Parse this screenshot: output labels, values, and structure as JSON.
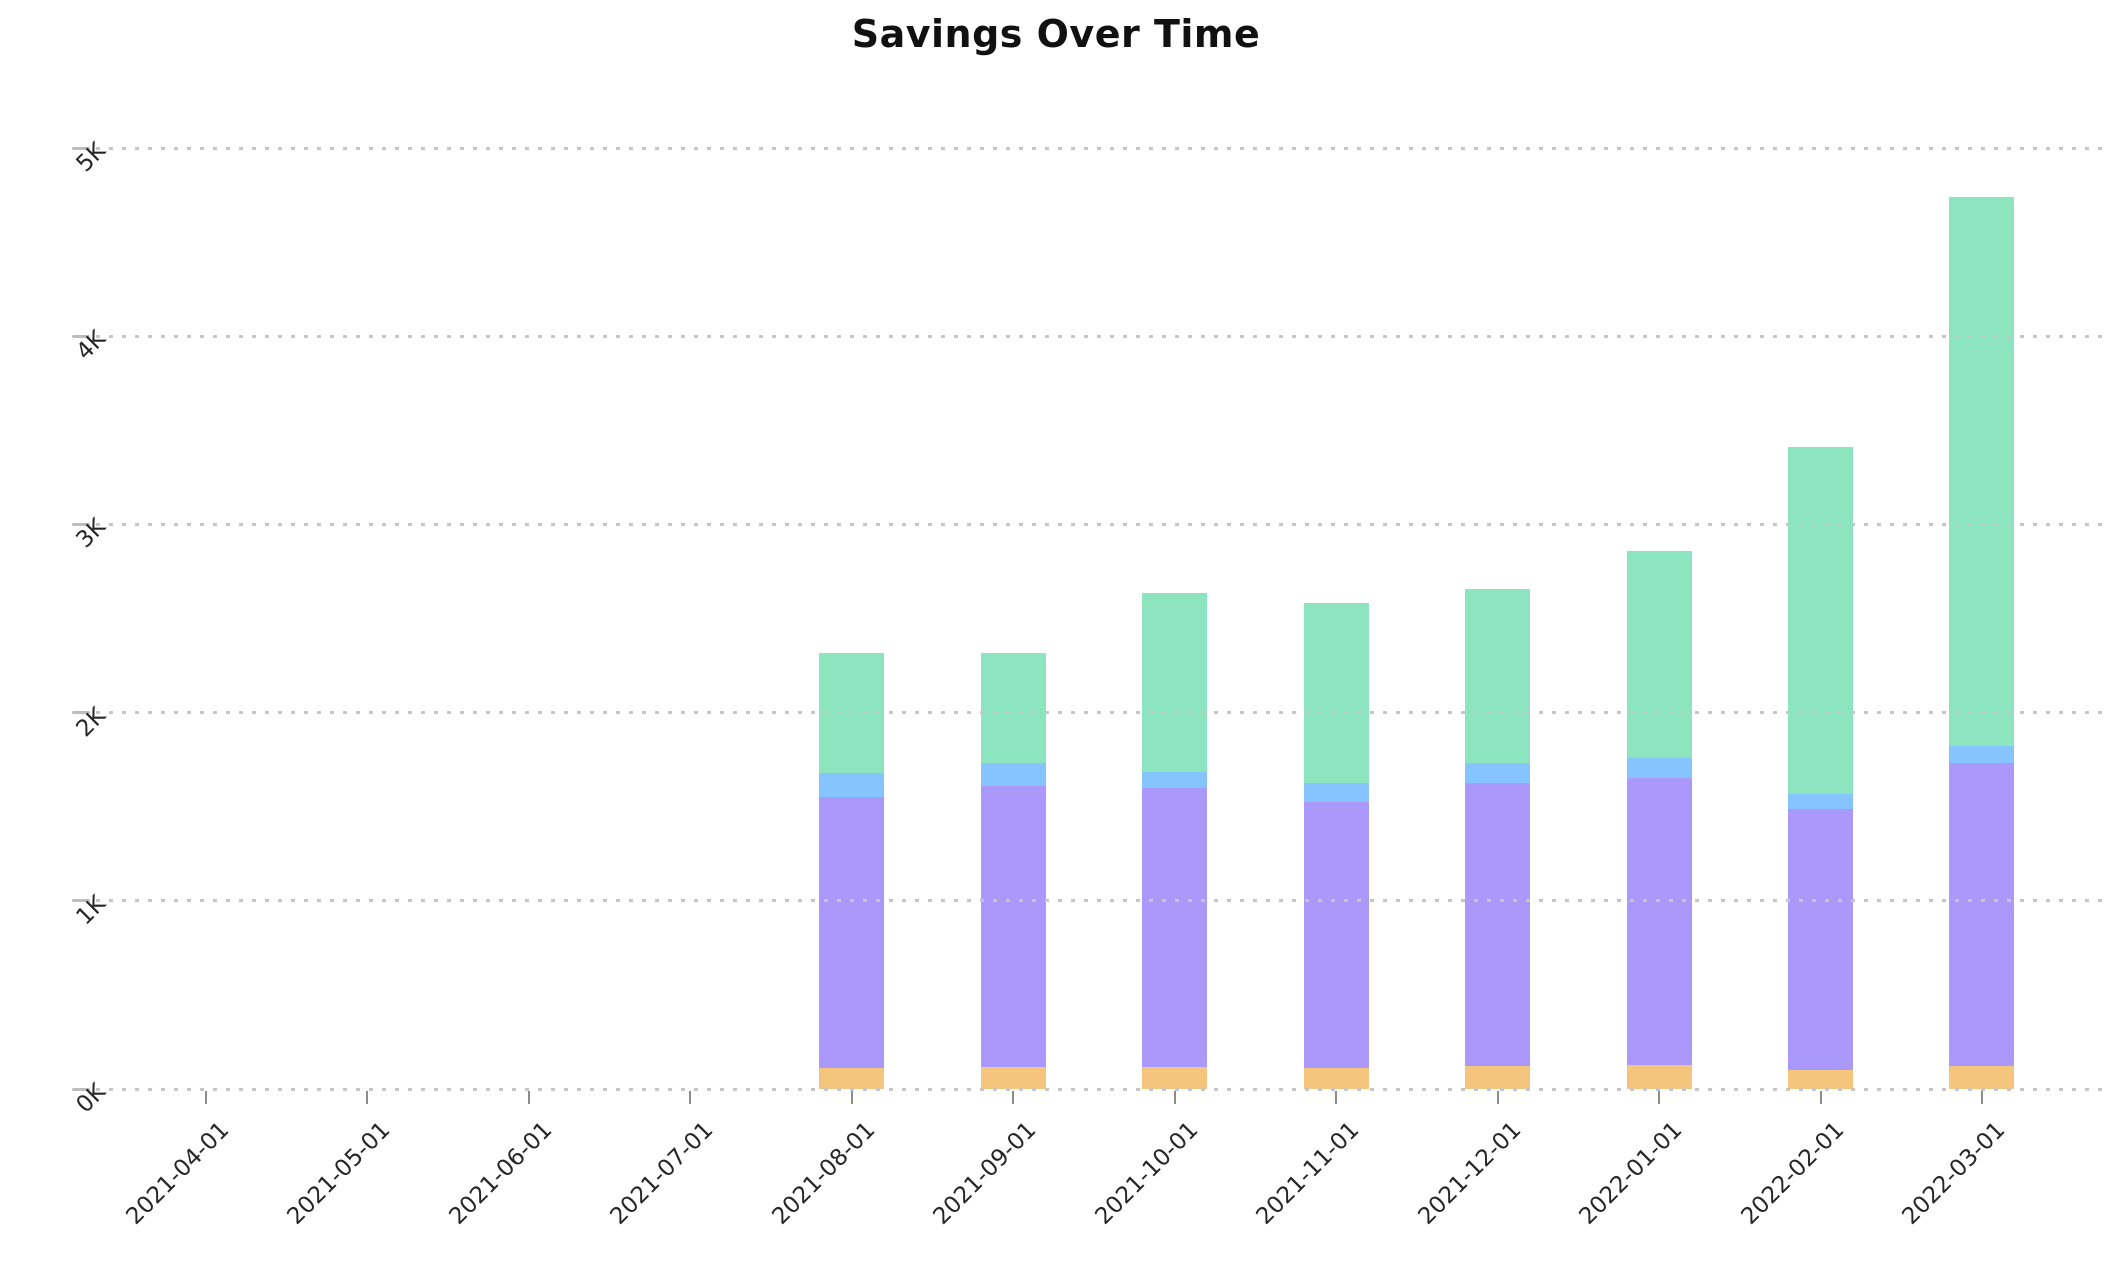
{
  "title": "Savings Over Time",
  "chart_data": {
    "type": "bar",
    "stacked": true,
    "title": "Savings Over Time",
    "xlabel": "",
    "ylabel": "",
    "x_tick_labels": [
      "2021-04-01",
      "2021-05-01",
      "2021-06-01",
      "2021-07-01",
      "2021-08-01",
      "2021-09-01",
      "2021-10-01",
      "2021-11-01",
      "2021-12-01",
      "2022-01-01",
      "2022-02-01",
      "2022-03-01"
    ],
    "y_tick_labels": [
      "0K",
      "1K",
      "2K",
      "3K",
      "4K",
      "5K"
    ],
    "ylim": [
      0,
      5000
    ],
    "y_tick_interval": 1000,
    "grid": "horizontal-dotted",
    "gridlines_over_bars": true,
    "legend": "none",
    "series": [
      {
        "name": "orange",
        "color": "#f6c57d",
        "values": [
          0,
          0,
          0,
          0,
          110,
          115,
          115,
          110,
          120,
          125,
          100,
          120
        ]
      },
      {
        "name": "purple",
        "color": "#aa99fa",
        "values": [
          0,
          0,
          0,
          0,
          1440,
          1495,
          1485,
          1415,
          1505,
          1530,
          1390,
          1610
        ]
      },
      {
        "name": "blue",
        "color": "#85c4fe",
        "values": [
          0,
          0,
          0,
          0,
          130,
          120,
          85,
          100,
          105,
          105,
          80,
          90
        ]
      },
      {
        "name": "green",
        "color": "#8de5bf",
        "values": [
          0,
          0,
          0,
          0,
          635,
          585,
          950,
          955,
          925,
          1100,
          1840,
          2920
        ]
      }
    ],
    "stack_order_bottom_to_top": [
      "orange",
      "purple",
      "blue",
      "green"
    ],
    "totals": [
      0,
      0,
      0,
      0,
      2315,
      2315,
      2635,
      2580,
      2655,
      2860,
      3410,
      4740
    ]
  },
  "colors": {
    "background": "#ffffff",
    "grid": "#c6c6c6",
    "tick": "#8c8c8c",
    "tick_label": "#262626",
    "title": "#111111"
  }
}
